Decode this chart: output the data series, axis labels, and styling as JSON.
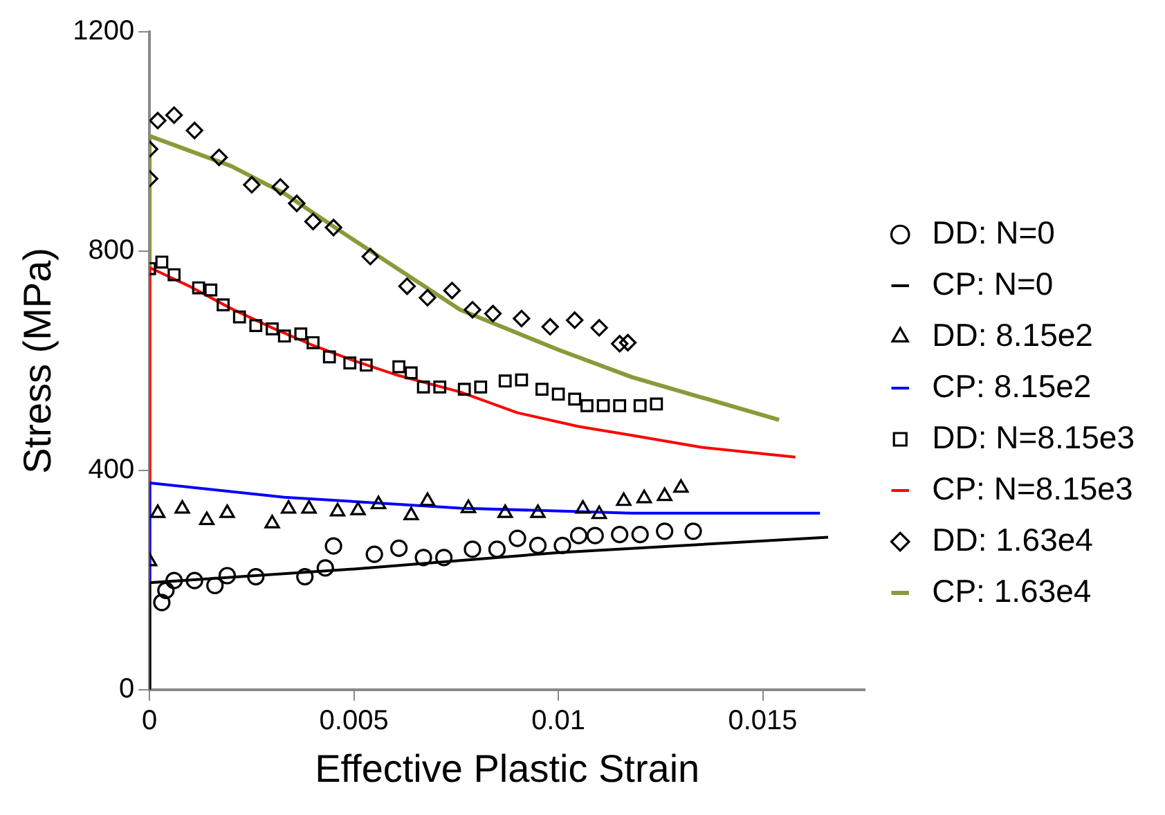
{
  "chart_data": {
    "type": "scatter",
    "xlabel": "Effective Plastic Strain",
    "ylabel": "Stress (MPa)",
    "xlim": [
      0,
      0.0175
    ],
    "xticks": [
      0,
      0.005,
      0.01,
      0.015
    ],
    "ylim": [
      0,
      1200
    ],
    "yticks": [
      0,
      400,
      800,
      1200
    ],
    "grid": false,
    "legend": "right",
    "series": [
      {
        "name": "DD: N=0",
        "type": "scatter",
        "marker": "circle",
        "color": "#000000",
        "x": [
          0.0003,
          0.0004,
          0.0006,
          0.0011,
          0.0016,
          0.0019,
          0.0026,
          0.0038,
          0.0043,
          0.0045,
          0.0055,
          0.0061,
          0.0067,
          0.0072,
          0.0079,
          0.0085,
          0.009,
          0.0095,
          0.0101,
          0.0105,
          0.0109,
          0.0115,
          0.012,
          0.0126,
          0.0133
        ],
        "values": [
          159,
          181,
          199,
          199,
          190,
          208,
          206,
          206,
          222,
          262,
          247,
          258,
          241,
          241,
          256,
          256,
          276,
          263,
          263,
          281,
          281,
          283,
          283,
          289,
          289
        ]
      },
      {
        "name": "CP: N=0",
        "type": "line",
        "marker": "none",
        "color": "#000000",
        "x": [
          0,
          0,
          0.005,
          0.01,
          0.0166
        ],
        "values": [
          0,
          195,
          220,
          250,
          278
        ]
      },
      {
        "name": "DD: 8.15e2",
        "type": "scatter",
        "marker": "triangle",
        "color": "#000000",
        "x": [
          0,
          0.0002,
          0.0008,
          0.0014,
          0.0019,
          0.003,
          0.0034,
          0.0039,
          0.0046,
          0.0051,
          0.0056,
          0.0064,
          0.0068,
          0.0078,
          0.0087,
          0.0095,
          0.0106,
          0.011,
          0.0116,
          0.0121,
          0.0126,
          0.013
        ],
        "values": [
          234,
          322,
          330,
          309,
          322,
          303,
          330,
          330,
          325,
          327,
          338,
          318,
          344,
          331,
          322,
          322,
          330,
          320,
          344,
          349,
          353,
          368
        ]
      },
      {
        "name": "CP: 8.15e2",
        "type": "line",
        "marker": "none",
        "color": "#0000ff",
        "x": [
          0,
          0,
          0.0033,
          0.0076,
          0.0118,
          0.0164
        ],
        "values": [
          0,
          377,
          351,
          331,
          322,
          322
        ]
      },
      {
        "name": "DD: N=8.15e3",
        "type": "scatter",
        "marker": "square",
        "color": "#000000",
        "x": [
          0,
          0.0003,
          0.0006,
          0.0012,
          0.0015,
          0.0018,
          0.0022,
          0.0026,
          0.003,
          0.0033,
          0.0037,
          0.004,
          0.0044,
          0.0049,
          0.0053,
          0.0061,
          0.0064,
          0.0067,
          0.0071,
          0.0077,
          0.0081,
          0.0087,
          0.0091,
          0.0096,
          0.01,
          0.0104,
          0.0107,
          0.0111,
          0.0115,
          0.012,
          0.0124
        ],
        "values": [
          768,
          780,
          757,
          733,
          729,
          702,
          680,
          664,
          658,
          645,
          649,
          633,
          607,
          596,
          592,
          589,
          578,
          552,
          552,
          548,
          552,
          563,
          565,
          548,
          539,
          530,
          518,
          518,
          518,
          518,
          521
        ]
      },
      {
        "name": "CP: N=8.15e3",
        "type": "line",
        "marker": "none",
        "color": "#ff0000",
        "x": [
          0,
          0,
          0.001,
          0.002,
          0.003,
          0.004,
          0.005,
          0.006,
          0.0076,
          0.009,
          0.0105,
          0.0118,
          0.0135,
          0.0158
        ],
        "values": [
          0,
          770,
          735,
          695,
          660,
          628,
          600,
          575,
          543,
          505,
          480,
          464,
          442,
          424
        ]
      },
      {
        "name": "DD: 1.63e4",
        "type": "scatter",
        "marker": "diamond",
        "color": "#000000",
        "x": [
          0,
          0,
          0.0002,
          0.0006,
          0.0011,
          0.0017,
          0.0025,
          0.0032,
          0.0036,
          0.004,
          0.0045,
          0.0054,
          0.0063,
          0.0068,
          0.0074,
          0.0079,
          0.0084,
          0.0091,
          0.0098,
          0.0104,
          0.011,
          0.0115,
          0.0117
        ],
        "values": [
          932,
          986,
          1038,
          1048,
          1020,
          971,
          921,
          917,
          887,
          854,
          843,
          790,
          736,
          715,
          728,
          693,
          686,
          677,
          662,
          674,
          660,
          631,
          633
        ]
      },
      {
        "name": "CP: 1.63e4",
        "type": "line",
        "marker": "none",
        "color": "#8a9a3b",
        "x": [
          0,
          0,
          0.002,
          0.0033,
          0.005,
          0.0076,
          0.01,
          0.0118,
          0.0154
        ],
        "values": [
          0,
          1010,
          955,
          905,
          820,
          693,
          620,
          570,
          492
        ]
      }
    ]
  }
}
